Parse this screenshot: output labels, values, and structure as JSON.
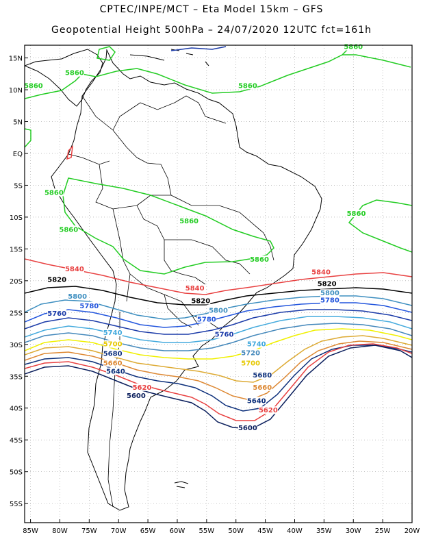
{
  "header": {
    "line1": "CPTEC/INPE/MCT –  Eta Model 15km – GFS",
    "line2": "Geopotential Height 500hPa – 24/07/2020 12UTC fct=161h"
  },
  "map": {
    "lon_range": [
      -86,
      -20
    ],
    "lat_range": [
      -58,
      17
    ],
    "lat_ticks": [
      "15N",
      "10N",
      "5N",
      "EQ",
      "5S",
      "10S",
      "15S",
      "20S",
      "25S",
      "30S",
      "35S",
      "40S",
      "45S",
      "50S",
      "55S"
    ],
    "lon_ticks": [
      "85W",
      "80W",
      "75W",
      "70W",
      "65W",
      "60W",
      "55W",
      "50W",
      "45W",
      "40W",
      "35W",
      "30W",
      "25W",
      "20W"
    ]
  },
  "contours": [
    {
      "level": "5860",
      "color": "#22cc22"
    },
    {
      "level": "5840",
      "color": "#e84040"
    },
    {
      "level": "5820",
      "color": "#000000"
    },
    {
      "level": "5800",
      "color": "#3e8fc0"
    },
    {
      "level": "5780",
      "color": "#2255dd"
    },
    {
      "level": "5760",
      "color": "#1a3aa8"
    },
    {
      "level": "5740",
      "color": "#44aadd"
    },
    {
      "level": "5720",
      "color": "#4488bb"
    },
    {
      "level": "5700",
      "color": "#f0f000"
    },
    {
      "level": "5680",
      "color": "#ddaa33"
    },
    {
      "level": "5660",
      "color": "#dd8833"
    },
    {
      "level": "5640",
      "color": "#0b2e7a"
    },
    {
      "level": "5620",
      "color": "#e84040"
    },
    {
      "level": "5600",
      "color": "#0a1e5c"
    }
  ],
  "contour_labels": [
    {
      "text": "5860",
      "color": "#22cc22",
      "lon": -84.5,
      "lat": 10.3
    },
    {
      "text": "5860",
      "color": "#22cc22",
      "lon": -77.5,
      "lat": 12.3
    },
    {
      "text": "5860",
      "color": "#22cc22",
      "lon": -48,
      "lat": 10.3
    },
    {
      "text": "5860",
      "color": "#22cc22",
      "lon": -30,
      "lat": 16.4
    },
    {
      "text": "5860",
      "color": "#22cc22",
      "lon": -81,
      "lat": -6.5
    },
    {
      "text": "5860",
      "color": "#22cc22",
      "lon": -78.5,
      "lat": -12.3
    },
    {
      "text": "5860",
      "color": "#22cc22",
      "lon": -58,
      "lat": -11
    },
    {
      "text": "5860",
      "color": "#22cc22",
      "lon": -46,
      "lat": -17
    },
    {
      "text": "5860",
      "color": "#22cc22",
      "lon": -29.5,
      "lat": -9.8
    },
    {
      "text": "5840",
      "color": "#e84040",
      "lon": -77.5,
      "lat": -18.5
    },
    {
      "text": "5840",
      "color": "#e84040",
      "lon": -57,
      "lat": -21.5
    },
    {
      "text": "5840",
      "color": "#e84040",
      "lon": -35.5,
      "lat": -19
    },
    {
      "text": "5820",
      "color": "#000000",
      "lon": -80.5,
      "lat": -20.2
    },
    {
      "text": "5820",
      "color": "#000000",
      "lon": -56,
      "lat": -23.5
    },
    {
      "text": "5820",
      "color": "#000000",
      "lon": -34.5,
      "lat": -20.8
    },
    {
      "text": "5800",
      "color": "#3e8fc0",
      "lon": -77,
      "lat": -22.8
    },
    {
      "text": "5800",
      "color": "#3e8fc0",
      "lon": -53,
      "lat": -25
    },
    {
      "text": "5800",
      "color": "#3e8fc0",
      "lon": -34,
      "lat": -22.3
    },
    {
      "text": "5780",
      "color": "#2255dd",
      "lon": -75,
      "lat": -24.3
    },
    {
      "text": "5780",
      "color": "#2255dd",
      "lon": -55,
      "lat": -26.4
    },
    {
      "text": "5780",
      "color": "#2255dd",
      "lon": -34,
      "lat": -23.4
    },
    {
      "text": "5760",
      "color": "#1a3aa8",
      "lon": -80.5,
      "lat": -25.5
    },
    {
      "text": "5760",
      "color": "#1a3aa8",
      "lon": -52,
      "lat": -28.8
    },
    {
      "text": "5740",
      "color": "#44aadd",
      "lon": -71,
      "lat": -28.5
    },
    {
      "text": "5740",
      "color": "#44aadd",
      "lon": -46.5,
      "lat": -30.3
    },
    {
      "text": "5720",
      "color": "#4488bb",
      "lon": -47.5,
      "lat": -31.7
    },
    {
      "text": "5700",
      "color": "#e6c800",
      "lon": -71,
      "lat": -30.3
    },
    {
      "text": "5700",
      "color": "#e6c800",
      "lon": -47.5,
      "lat": -33.3
    },
    {
      "text": "5680",
      "color": "#0b2e7a",
      "lon": -71,
      "lat": -31.8
    },
    {
      "text": "5680",
      "color": "#0b2e7a",
      "lon": -45.5,
      "lat": -35.2
    },
    {
      "text": "5660",
      "color": "#dd8833",
      "lon": -71,
      "lat": -33.3
    },
    {
      "text": "5660",
      "color": "#dd8833",
      "lon": -45.5,
      "lat": -37.1
    },
    {
      "text": "5640",
      "color": "#0b2e7a",
      "lon": -70.5,
      "lat": -34.6
    },
    {
      "text": "5640",
      "color": "#0b2e7a",
      "lon": -46.5,
      "lat": -39.2
    },
    {
      "text": "5620",
      "color": "#e84040",
      "lon": -66,
      "lat": -37.1
    },
    {
      "text": "5620",
      "color": "#e84040",
      "lon": -44.5,
      "lat": -40.7
    },
    {
      "text": "5600",
      "color": "#0a1e5c",
      "lon": -67,
      "lat": -38.4
    },
    {
      "text": "5600",
      "color": "#0a1e5c",
      "lon": -48,
      "lat": -43.5
    }
  ]
}
